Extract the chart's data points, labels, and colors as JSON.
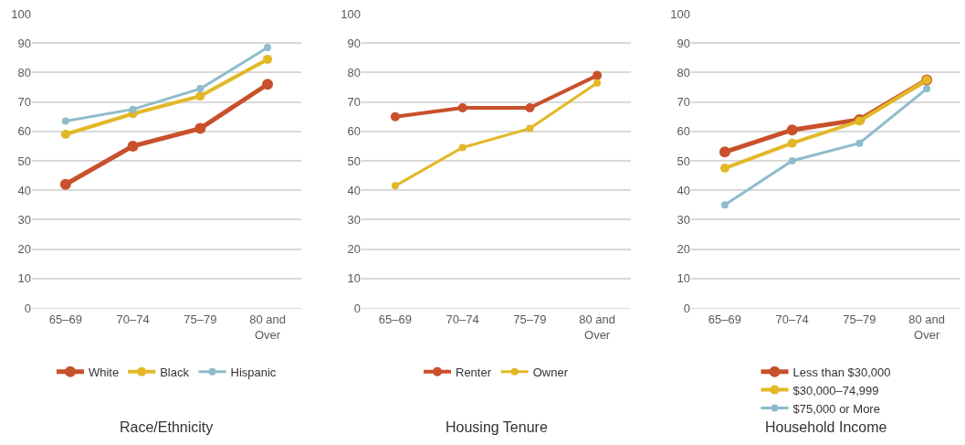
{
  "chart_data": [
    {
      "type": "line",
      "title": "Race/Ethnicity",
      "categories": [
        "65–69",
        "70–74",
        "75–79",
        "80 and\nOver"
      ],
      "ylim": [
        0,
        100
      ],
      "yticks": [
        0,
        10,
        20,
        30,
        40,
        50,
        60,
        70,
        80,
        90,
        100
      ],
      "grid": "y",
      "legend": "bottom",
      "marker": "circle",
      "series": [
        {
          "name": "White",
          "color": "#c8502a",
          "values": [
            42,
            55,
            61,
            76
          ]
        },
        {
          "name": "Black",
          "color": "#e2b827",
          "values": [
            59,
            66,
            72,
            84.5
          ]
        },
        {
          "name": "Hispanic",
          "color": "#8fbccb",
          "values": [
            63.5,
            67.5,
            74.5,
            88.5
          ]
        }
      ]
    },
    {
      "type": "line",
      "title": "Housing Tenure",
      "categories": [
        "65–69",
        "70–74",
        "75–79",
        "80 and\nOver"
      ],
      "ylim": [
        0,
        100
      ],
      "yticks": [
        0,
        10,
        20,
        30,
        40,
        50,
        60,
        70,
        80,
        90,
        100
      ],
      "grid": "y",
      "legend": "bottom",
      "marker": "circle",
      "series": [
        {
          "name": "Renter",
          "color": "#c8502a",
          "values": [
            65,
            68,
            68,
            79
          ]
        },
        {
          "name": "Owner",
          "color": "#e2b827",
          "values": [
            41.5,
            54.5,
            61,
            76.5
          ]
        }
      ]
    },
    {
      "type": "line",
      "title": "Household Income",
      "categories": [
        "65–69",
        "70–74",
        "75–79",
        "80 and\nOver"
      ],
      "ylim": [
        0,
        100
      ],
      "yticks": [
        0,
        10,
        20,
        30,
        40,
        50,
        60,
        70,
        80,
        90,
        100
      ],
      "grid": "y",
      "legend": "bottom",
      "marker": "circle",
      "series": [
        {
          "name": "Less than $30,000",
          "color": "#c8502a",
          "values": [
            53,
            60.5,
            64,
            77.5
          ]
        },
        {
          "name": "$30,000–74,999",
          "color": "#e2b827",
          "values": [
            47.5,
            56,
            63.5,
            77.5
          ]
        },
        {
          "name": "$75,000 or More",
          "color": "#8fbccb",
          "values": [
            35,
            50,
            56,
            74.5
          ]
        }
      ]
    }
  ]
}
